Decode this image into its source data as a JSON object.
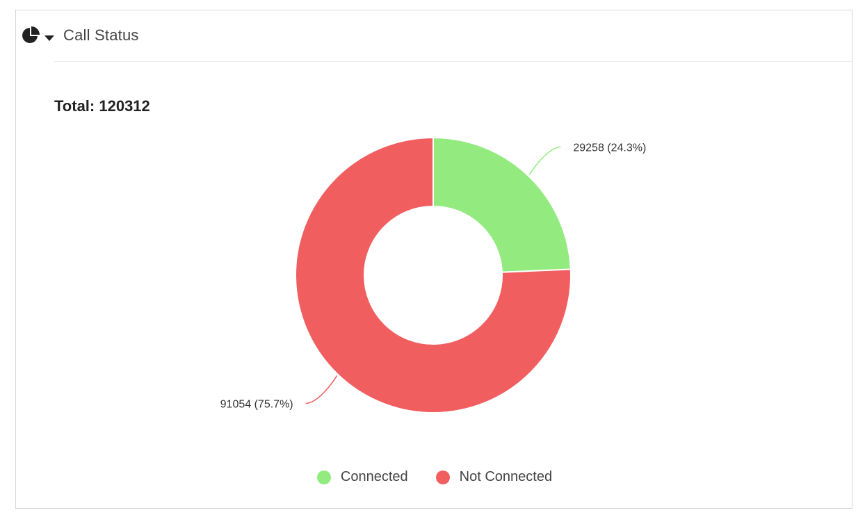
{
  "header": {
    "title": "Call Status",
    "chart_type_icon": "pie-chart-icon",
    "dropdown_icon": "caret-down-icon"
  },
  "total_label": "Total: 120312",
  "colors": {
    "connected": "#93eb80",
    "not_connected": "#f15e60"
  },
  "chart_data": {
    "type": "pie",
    "subtype": "donut",
    "total": 120312,
    "categories": [
      "Connected",
      "Not Connected"
    ],
    "values": [
      29258,
      91054
    ],
    "percentages": [
      24.3,
      75.7
    ],
    "data_labels": [
      "29258 (24.3%)",
      "91054 (75.7%)"
    ],
    "legend_position": "bottom"
  },
  "legend": [
    {
      "label": "Connected",
      "color": "#93eb80"
    },
    {
      "label": "Not Connected",
      "color": "#f15e60"
    }
  ]
}
